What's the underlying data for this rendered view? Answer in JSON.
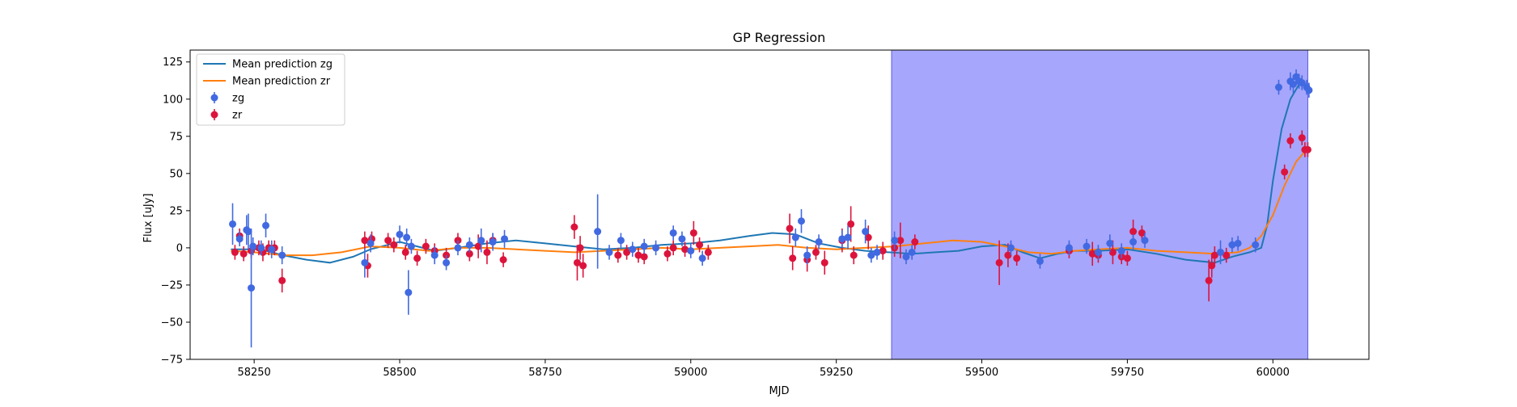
{
  "chart_data": {
    "type": "scatter",
    "title": "GP Regression",
    "xlabel": "MJD",
    "ylabel": "Flux [uJy]",
    "xlim": [
      58140,
      60165
    ],
    "ylim": [
      -75,
      133
    ],
    "x_ticks": [
      58250,
      58500,
      58750,
      59000,
      59250,
      59500,
      59750,
      60000
    ],
    "y_ticks": [
      -75,
      -50,
      -25,
      0,
      25,
      50,
      75,
      100,
      125
    ],
    "grid": false,
    "legend_position": "top-left",
    "shaded_region": {
      "x_start": 59345,
      "x_end": 60060,
      "color": "#a6a6fc"
    },
    "series": [
      {
        "name": "Mean prediction zg",
        "kind": "line",
        "color": "#1f77b4",
        "points": [
          [
            58210,
            -1
          ],
          [
            58260,
            -1
          ],
          [
            58300,
            -5
          ],
          [
            58340,
            -8
          ],
          [
            58380,
            -10
          ],
          [
            58420,
            -6
          ],
          [
            58450,
            -1
          ],
          [
            58480,
            2
          ],
          [
            58500,
            4
          ],
          [
            58530,
            1
          ],
          [
            58560,
            -2
          ],
          [
            58600,
            0
          ],
          [
            58650,
            3
          ],
          [
            58700,
            5
          ],
          [
            58750,
            3
          ],
          [
            58800,
            1
          ],
          [
            58850,
            -1
          ],
          [
            58900,
            0
          ],
          [
            58950,
            2
          ],
          [
            59000,
            3
          ],
          [
            59050,
            5
          ],
          [
            59100,
            8
          ],
          [
            59140,
            10
          ],
          [
            59180,
            9
          ],
          [
            59220,
            3
          ],
          [
            59260,
            0
          ],
          [
            59300,
            -2
          ],
          [
            59340,
            -3
          ],
          [
            59380,
            -4
          ],
          [
            59420,
            -3
          ],
          [
            59460,
            -2
          ],
          [
            59500,
            1
          ],
          [
            59540,
            2
          ],
          [
            59570,
            -3
          ],
          [
            59600,
            -7
          ],
          [
            59630,
            -4
          ],
          [
            59660,
            -2
          ],
          [
            59700,
            -2
          ],
          [
            59750,
            -1
          ],
          [
            59800,
            -4
          ],
          [
            59850,
            -8
          ],
          [
            59900,
            -10
          ],
          [
            59930,
            -6
          ],
          [
            59960,
            -3
          ],
          [
            59980,
            0
          ],
          [
            59990,
            15
          ],
          [
            60000,
            45
          ],
          [
            60015,
            80
          ],
          [
            60030,
            100
          ],
          [
            60045,
            110
          ],
          [
            60060,
            110
          ]
        ]
      },
      {
        "name": "Mean prediction zr",
        "kind": "line",
        "color": "#ff7f0e",
        "points": [
          [
            58210,
            -2
          ],
          [
            58250,
            -3
          ],
          [
            58300,
            -5
          ],
          [
            58350,
            -5
          ],
          [
            58400,
            -3
          ],
          [
            58450,
            1
          ],
          [
            58500,
            0
          ],
          [
            58550,
            -2
          ],
          [
            58600,
            0
          ],
          [
            58650,
            0
          ],
          [
            58700,
            -1
          ],
          [
            58750,
            -2
          ],
          [
            58800,
            -3
          ],
          [
            58850,
            -2
          ],
          [
            58900,
            -1
          ],
          [
            58950,
            0
          ],
          [
            59000,
            -1
          ],
          [
            59050,
            0
          ],
          [
            59100,
            1
          ],
          [
            59150,
            2
          ],
          [
            59200,
            0
          ],
          [
            59250,
            -1
          ],
          [
            59300,
            0
          ],
          [
            59350,
            1
          ],
          [
            59400,
            3
          ],
          [
            59450,
            5
          ],
          [
            59500,
            4
          ],
          [
            59540,
            1
          ],
          [
            59580,
            -3
          ],
          [
            59620,
            -4
          ],
          [
            59660,
            -2
          ],
          [
            59700,
            -1
          ],
          [
            59750,
            0
          ],
          [
            59800,
            -2
          ],
          [
            59850,
            -3
          ],
          [
            59900,
            -4
          ],
          [
            59940,
            -3
          ],
          [
            59960,
            0
          ],
          [
            59980,
            8
          ],
          [
            60000,
            22
          ],
          [
            60020,
            42
          ],
          [
            60040,
            58
          ],
          [
            60060,
            67
          ]
        ]
      },
      {
        "name": "zg",
        "kind": "errorbar",
        "color": "#4169e1",
        "points": [
          [
            58213,
            16,
            14
          ],
          [
            58225,
            6,
            5
          ],
          [
            58237,
            12,
            10
          ],
          [
            58240,
            11,
            12
          ],
          [
            58245,
            -27,
            40
          ],
          [
            58248,
            1,
            6
          ],
          [
            58262,
            0,
            5
          ],
          [
            58270,
            15,
            8
          ],
          [
            58280,
            -1,
            6
          ],
          [
            58298,
            -5,
            6
          ],
          [
            58440,
            -10,
            10
          ],
          [
            58450,
            3,
            6
          ],
          [
            58500,
            9,
            6
          ],
          [
            58512,
            7,
            6
          ],
          [
            58520,
            1,
            5
          ],
          [
            58515,
            -30,
            15
          ],
          [
            58560,
            -5,
            6
          ],
          [
            58580,
            -10,
            5
          ],
          [
            58600,
            0,
            5
          ],
          [
            58620,
            2,
            5
          ],
          [
            58640,
            5,
            8
          ],
          [
            58660,
            4,
            6
          ],
          [
            58680,
            6,
            6
          ],
          [
            58840,
            11,
            25
          ],
          [
            58860,
            -3,
            5
          ],
          [
            58880,
            5,
            5
          ],
          [
            58900,
            -1,
            5
          ],
          [
            58920,
            1,
            5
          ],
          [
            58940,
            0,
            5
          ],
          [
            58970,
            10,
            5
          ],
          [
            58985,
            6,
            5
          ],
          [
            59000,
            -2,
            5
          ],
          [
            59020,
            -7,
            5
          ],
          [
            59180,
            7,
            6
          ],
          [
            59190,
            18,
            8
          ],
          [
            59200,
            -5,
            6
          ],
          [
            59220,
            4,
            5
          ],
          [
            59260,
            6,
            6
          ],
          [
            59270,
            7,
            8
          ],
          [
            59300,
            11,
            8
          ],
          [
            59310,
            -5,
            5
          ],
          [
            59320,
            -3,
            5
          ],
          [
            59350,
            5,
            6
          ],
          [
            59370,
            -6,
            5
          ],
          [
            59380,
            -3,
            5
          ],
          [
            59550,
            0,
            5
          ],
          [
            59600,
            -9,
            5
          ],
          [
            59650,
            0,
            5
          ],
          [
            59680,
            1,
            5
          ],
          [
            59700,
            -3,
            5
          ],
          [
            59720,
            3,
            6
          ],
          [
            59740,
            -2,
            5
          ],
          [
            59760,
            4,
            5
          ],
          [
            59780,
            5,
            5
          ],
          [
            59910,
            -3,
            8
          ],
          [
            59930,
            2,
            5
          ],
          [
            59940,
            3,
            5
          ],
          [
            59970,
            2,
            5
          ],
          [
            60010,
            108,
            5
          ],
          [
            60030,
            112,
            6
          ],
          [
            60035,
            110,
            6
          ],
          [
            60040,
            115,
            5
          ],
          [
            60045,
            112,
            5
          ],
          [
            60050,
            111,
            5
          ],
          [
            60058,
            108,
            5
          ],
          [
            60062,
            106,
            5
          ]
        ]
      },
      {
        "name": "zr",
        "kind": "errorbar",
        "color": "#dc143c",
        "points": [
          [
            58217,
            -3,
            5
          ],
          [
            58225,
            8,
            5
          ],
          [
            58232,
            -4,
            5
          ],
          [
            58245,
            -2,
            5
          ],
          [
            58258,
            0,
            5
          ],
          [
            58265,
            -3,
            6
          ],
          [
            58275,
            0,
            5
          ],
          [
            58285,
            0,
            5
          ],
          [
            58298,
            -22,
            8
          ],
          [
            58440,
            5,
            6
          ],
          [
            58445,
            -12,
            8
          ],
          [
            58452,
            6,
            5
          ],
          [
            58480,
            5,
            5
          ],
          [
            58490,
            2,
            5
          ],
          [
            58510,
            -3,
            5
          ],
          [
            58530,
            -7,
            5
          ],
          [
            58545,
            1,
            5
          ],
          [
            58560,
            -2,
            5
          ],
          [
            58580,
            -5,
            5
          ],
          [
            58600,
            5,
            5
          ],
          [
            58620,
            -4,
            5
          ],
          [
            58635,
            1,
            8
          ],
          [
            58650,
            -3,
            8
          ],
          [
            58660,
            5,
            5
          ],
          [
            58678,
            -8,
            5
          ],
          [
            58800,
            14,
            8
          ],
          [
            58805,
            -10,
            12
          ],
          [
            58810,
            0,
            8
          ],
          [
            58815,
            -12,
            8
          ],
          [
            58875,
            -5,
            5
          ],
          [
            58890,
            -3,
            5
          ],
          [
            58910,
            -5,
            5
          ],
          [
            58920,
            -6,
            5
          ],
          [
            58960,
            -4,
            5
          ],
          [
            58970,
            0,
            5
          ],
          [
            58990,
            -1,
            5
          ],
          [
            59005,
            10,
            8
          ],
          [
            59015,
            2,
            5
          ],
          [
            59030,
            -3,
            5
          ],
          [
            59170,
            13,
            10
          ],
          [
            59175,
            -7,
            8
          ],
          [
            59200,
            -8,
            8
          ],
          [
            59215,
            -3,
            5
          ],
          [
            59230,
            -10,
            8
          ],
          [
            59260,
            5,
            8
          ],
          [
            59275,
            16,
            12
          ],
          [
            59280,
            -5,
            6
          ],
          [
            59305,
            7,
            8
          ],
          [
            59330,
            -2,
            6
          ],
          [
            59350,
            0,
            6
          ],
          [
            59360,
            5,
            12
          ],
          [
            59385,
            4,
            5
          ],
          [
            59530,
            -10,
            15
          ],
          [
            59545,
            -5,
            8
          ],
          [
            59560,
            -7,
            5
          ],
          [
            59650,
            -2,
            5
          ],
          [
            59690,
            -4,
            8
          ],
          [
            59700,
            -5,
            5
          ],
          [
            59725,
            -3,
            8
          ],
          [
            59740,
            -6,
            5
          ],
          [
            59750,
            -7,
            5
          ],
          [
            59760,
            11,
            8
          ],
          [
            59775,
            10,
            5
          ],
          [
            59890,
            -22,
            14
          ],
          [
            59895,
            -12,
            8
          ],
          [
            59900,
            -5,
            6
          ],
          [
            59920,
            -5,
            5
          ],
          [
            60020,
            51,
            5
          ],
          [
            60030,
            72,
            5
          ],
          [
            60050,
            74,
            5
          ],
          [
            60055,
            66,
            5
          ],
          [
            60060,
            66,
            5
          ]
        ]
      }
    ]
  }
}
